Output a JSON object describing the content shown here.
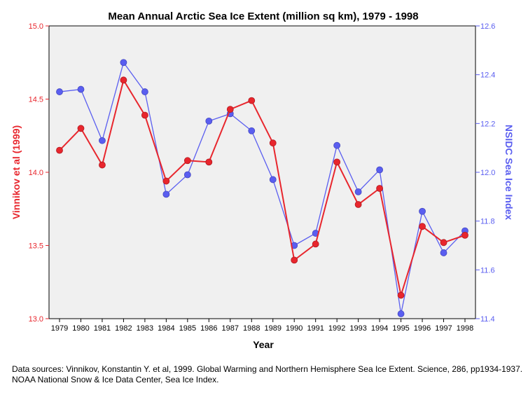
{
  "chart_data": {
    "type": "line",
    "title": "Mean Annual Arctic Sea Ice Extent (million sq km), 1979 - 1998",
    "xlabel": "Year",
    "ylabel_left": "Vinnikov et al (1999)",
    "ylabel_right": "NSIDC Sea Ice Index",
    "categories": [
      "1979",
      "1980",
      "1981",
      "1982",
      "1983",
      "1984",
      "1985",
      "1986",
      "1987",
      "1988",
      "1989",
      "1990",
      "1991",
      "1992",
      "1993",
      "1994",
      "1995",
      "1996",
      "1997",
      "1998"
    ],
    "ylim_left": [
      13.0,
      15.0
    ],
    "ylim_right": [
      11.4,
      12.6
    ],
    "yticks_left": [
      "13.0",
      "13.5",
      "14.0",
      "14.5",
      "15.0"
    ],
    "yticks_right": [
      "11.4",
      "11.6",
      "11.8",
      "12.0",
      "12.2",
      "12.4",
      "12.6"
    ],
    "grid": false,
    "series": [
      {
        "name": "Vinnikov et al (1999)",
        "axis": "left",
        "color": "#e8262d",
        "values": [
          14.15,
          14.3,
          14.05,
          14.63,
          14.39,
          13.94,
          14.08,
          14.07,
          14.43,
          14.49,
          14.2,
          13.4,
          13.51,
          14.07,
          13.78,
          13.89,
          13.16,
          13.63,
          13.52,
          13.57
        ]
      },
      {
        "name": "NSIDC Sea Ice Index",
        "axis": "right",
        "color": "#5a5ef0",
        "values": [
          12.33,
          12.34,
          12.13,
          12.45,
          12.33,
          11.91,
          11.99,
          12.21,
          12.24,
          12.17,
          11.97,
          11.7,
          11.75,
          12.11,
          11.92,
          12.01,
          11.42,
          11.84,
          11.67,
          11.76
        ]
      }
    ]
  },
  "footnote": "Data sources: Vinnikov, Konstantin Y. et al, 1999. Global Warming and Northern Hemisphere Sea Ice Extent. Science, 286, pp1934-1937. NOAA National Snow & Ice Data Center, Sea Ice Index."
}
